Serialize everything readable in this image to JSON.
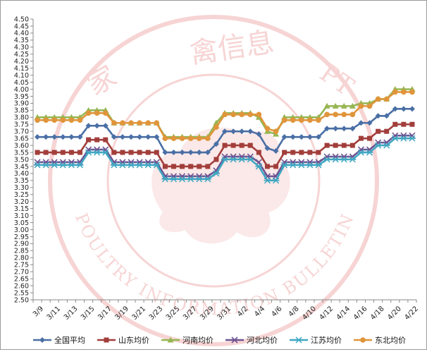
{
  "chart_data": {
    "type": "line",
    "title": "",
    "xlabel": "",
    "ylabel": "",
    "ylim": [
      2.5,
      4.5
    ],
    "ytick_step": 0.05,
    "grid": false,
    "legend_position": "bottom",
    "x": [
      "3/9",
      "3/10",
      "3/11",
      "3/12",
      "3/13",
      "3/14",
      "3/15",
      "3/16",
      "3/17",
      "3/18",
      "3/19",
      "3/20",
      "3/21",
      "3/22",
      "3/23",
      "3/24",
      "3/25",
      "3/26",
      "3/27",
      "3/28",
      "3/29",
      "3/30",
      "3/31",
      "4/1",
      "4/2",
      "4/3",
      "4/4",
      "4/5",
      "4/6",
      "4/7",
      "4/8",
      "4/9",
      "4/10",
      "4/11",
      "4/12",
      "4/13",
      "4/14",
      "4/15",
      "4/16",
      "4/17",
      "4/18",
      "4/19",
      "4/20",
      "4/21",
      "4/22"
    ],
    "x_tick_labels": [
      "3/9",
      "3/11",
      "3/13",
      "3/15",
      "3/17",
      "3/19",
      "3/21",
      "3/23",
      "3/25",
      "3/27",
      "3/29",
      "3/31",
      "4/2",
      "4/4",
      "4/6",
      "4/8",
      "4/10",
      "4/12",
      "4/14",
      "4/16",
      "4/18",
      "4/20",
      "4/22"
    ],
    "series": [
      {
        "name": "全国平均",
        "color": "#4a6fa5",
        "marker": "diamond",
        "values": [
          3.66,
          3.66,
          3.66,
          3.66,
          3.66,
          3.66,
          3.74,
          3.74,
          3.74,
          3.66,
          3.66,
          3.66,
          3.66,
          3.66,
          3.66,
          3.55,
          3.55,
          3.55,
          3.55,
          3.55,
          3.55,
          3.61,
          3.7,
          3.7,
          3.7,
          3.7,
          3.68,
          3.58,
          3.56,
          3.66,
          3.66,
          3.66,
          3.66,
          3.66,
          3.72,
          3.72,
          3.72,
          3.72,
          3.76,
          3.76,
          3.81,
          3.81,
          3.86,
          3.86,
          3.86
        ]
      },
      {
        "name": "山东均价",
        "color": "#a23e3b",
        "marker": "square",
        "values": [
          3.55,
          3.55,
          3.55,
          3.55,
          3.55,
          3.55,
          3.64,
          3.64,
          3.64,
          3.55,
          3.55,
          3.55,
          3.55,
          3.55,
          3.55,
          3.45,
          3.45,
          3.45,
          3.45,
          3.45,
          3.45,
          3.5,
          3.6,
          3.6,
          3.6,
          3.6,
          3.55,
          3.45,
          3.45,
          3.55,
          3.55,
          3.55,
          3.55,
          3.55,
          3.6,
          3.6,
          3.6,
          3.6,
          3.65,
          3.65,
          3.7,
          3.7,
          3.75,
          3.75,
          3.75
        ]
      },
      {
        "name": "河南均价",
        "color": "#97b552",
        "marker": "triangle",
        "values": [
          3.8,
          3.8,
          3.8,
          3.8,
          3.8,
          3.8,
          3.85,
          3.85,
          3.85,
          3.76,
          3.76,
          3.76,
          3.76,
          3.76,
          3.76,
          3.66,
          3.66,
          3.66,
          3.66,
          3.66,
          3.66,
          3.76,
          3.83,
          3.83,
          3.83,
          3.83,
          3.8,
          3.7,
          3.68,
          3.8,
          3.8,
          3.8,
          3.8,
          3.8,
          3.88,
          3.88,
          3.88,
          3.88,
          3.9,
          3.9,
          3.93,
          3.93,
          4.0,
          4.0,
          4.0
        ]
      },
      {
        "name": "河北均价",
        "color": "#6e5392",
        "marker": "x",
        "values": [
          3.48,
          3.48,
          3.48,
          3.48,
          3.48,
          3.48,
          3.57,
          3.57,
          3.57,
          3.48,
          3.48,
          3.48,
          3.48,
          3.48,
          3.48,
          3.38,
          3.38,
          3.38,
          3.38,
          3.38,
          3.38,
          3.42,
          3.52,
          3.52,
          3.52,
          3.52,
          3.48,
          3.38,
          3.38,
          3.48,
          3.48,
          3.48,
          3.48,
          3.48,
          3.52,
          3.52,
          3.52,
          3.52,
          3.57,
          3.57,
          3.62,
          3.62,
          3.67,
          3.67,
          3.67
        ]
      },
      {
        "name": "江苏均价",
        "color": "#3fa7c2",
        "marker": "star",
        "values": [
          3.46,
          3.46,
          3.46,
          3.46,
          3.46,
          3.46,
          3.55,
          3.55,
          3.55,
          3.46,
          3.46,
          3.46,
          3.46,
          3.46,
          3.46,
          3.36,
          3.36,
          3.36,
          3.36,
          3.36,
          3.36,
          3.4,
          3.5,
          3.5,
          3.5,
          3.5,
          3.45,
          3.35,
          3.35,
          3.46,
          3.46,
          3.46,
          3.46,
          3.46,
          3.5,
          3.5,
          3.5,
          3.5,
          3.55,
          3.55,
          3.6,
          3.6,
          3.65,
          3.65,
          3.65
        ]
      },
      {
        "name": "东北均价",
        "color": "#e0953b",
        "marker": "circle",
        "values": [
          3.78,
          3.78,
          3.78,
          3.78,
          3.78,
          3.78,
          3.83,
          3.83,
          3.83,
          3.76,
          3.76,
          3.76,
          3.76,
          3.76,
          3.76,
          3.65,
          3.65,
          3.65,
          3.65,
          3.65,
          3.65,
          3.73,
          3.82,
          3.82,
          3.82,
          3.82,
          3.82,
          3.72,
          3.7,
          3.78,
          3.78,
          3.78,
          3.78,
          3.78,
          3.82,
          3.82,
          3.82,
          3.82,
          3.88,
          3.88,
          3.93,
          3.93,
          3.98,
          3.98,
          3.98
        ]
      }
    ]
  },
  "watermark": {
    "top_text": "禽信息",
    "left_char": "家",
    "pt_text": "PT",
    "arc_text": "POULTRY INFORMATION BULLETIN",
    "color": "#f2b8b8"
  }
}
